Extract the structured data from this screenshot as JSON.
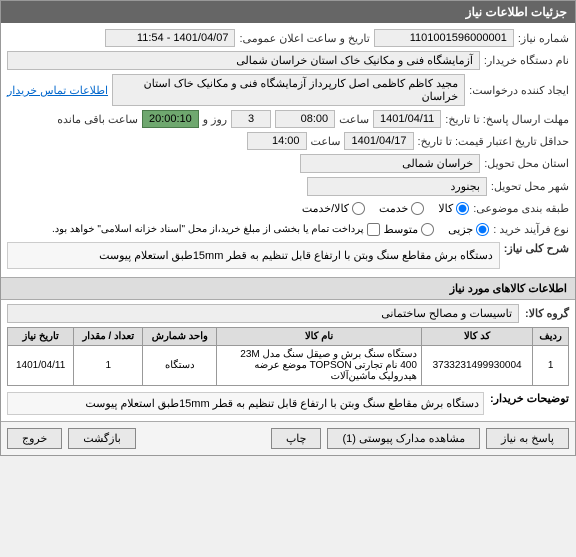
{
  "header": {
    "title": "جزئیات اطلاعات نیاز"
  },
  "fields": {
    "need_no_label": "شماره نیاز:",
    "need_no": "1101001596000001",
    "announce_label": "تاریخ و ساعت اعلان عمومی:",
    "announce_val": "1401/04/07 - 11:54",
    "buyer_label": "نام دستگاه خریدار:",
    "buyer_val": "آزمایشگاه فنی و مکانیک خاک استان خراسان شمالی",
    "creator_label": "ایجاد کننده درخواست:",
    "creator_val": "مجید کاظم کاظمی اصل  کارپرداز آزمایشگاه فنی و مکانیک خاک استان خراسان",
    "contact_link": "اطلاعات تماس خریدار",
    "deadline_label": "مهلت ارسال پاسخ: تا تاریخ:",
    "deadline_date": "1401/04/11",
    "time_label": "ساعت",
    "deadline_time": "08:00",
    "days_remain": "3",
    "days_remain_label": "روز و",
    "hours_remain": "20:00:10",
    "hours_remain_label": "ساعت باقی مانده",
    "validity_label": "حداقل تاریخ اعتبار قیمت: تا تاریخ:",
    "validity_date": "1401/04/17",
    "validity_time": "14:00",
    "province_label": "استان محل تحویل:",
    "province_val": "خراسان شمالی",
    "city_label": "شهر محل تحویل:",
    "city_val": "بجنورد",
    "subject_class_label": "طبقه بندی موضوعی:",
    "radio_goods": "کالا",
    "radio_service": "خدمت",
    "radio_both": "کالا/خدمت",
    "purchase_type_label": "نوع فرآیند خرید :",
    "radio_small": "جزیی",
    "radio_medium": "متوسط",
    "payment_note": "پرداخت تمام یا بخشی از مبلغ خرید،از محل \"اسناد خزانه اسلامی\" خواهد بود.",
    "need_desc_label": "شرح کلی نیاز:",
    "need_desc_val": "دستگاه برش مقاطع سنگ وبتن با ارتفاع قابل تنظیم به قطر 15mmطبق استعلام پیوست"
  },
  "items_section": {
    "title": "اطلاعات کالاهای مورد نیاز",
    "group_label": "گروه کالا:",
    "group_val": "تاسیسات و مصالح ساختمانی",
    "columns": [
      "ردیف",
      "کد کالا",
      "نام کالا",
      "واحد شمارش",
      "تعداد / مقدار",
      "تاریخ نیاز"
    ],
    "rows": [
      [
        "1",
        "3733231499930004",
        "دستگاه سنگ برش و صیقل سنگ مدل 23M 400 نام تجارتی TOPSON موضع عرضه هیدرولیک ماشین‌آلات",
        "دستگاه",
        "1",
        "1401/04/11"
      ]
    ]
  },
  "buyer_note": {
    "label": "توضیحات خریدار:",
    "text": "دستگاه برش مقاطع سنگ وبتن با ارتفاع قابل تنظیم به قطر 15mmطبق استعلام پیوست"
  },
  "buttons": {
    "reply": "پاسخ به نیاز",
    "attachments": "مشاهده مدارک پیوستی (1)",
    "print": "چاپ",
    "back": "بازگشت",
    "exit": "خروج"
  }
}
